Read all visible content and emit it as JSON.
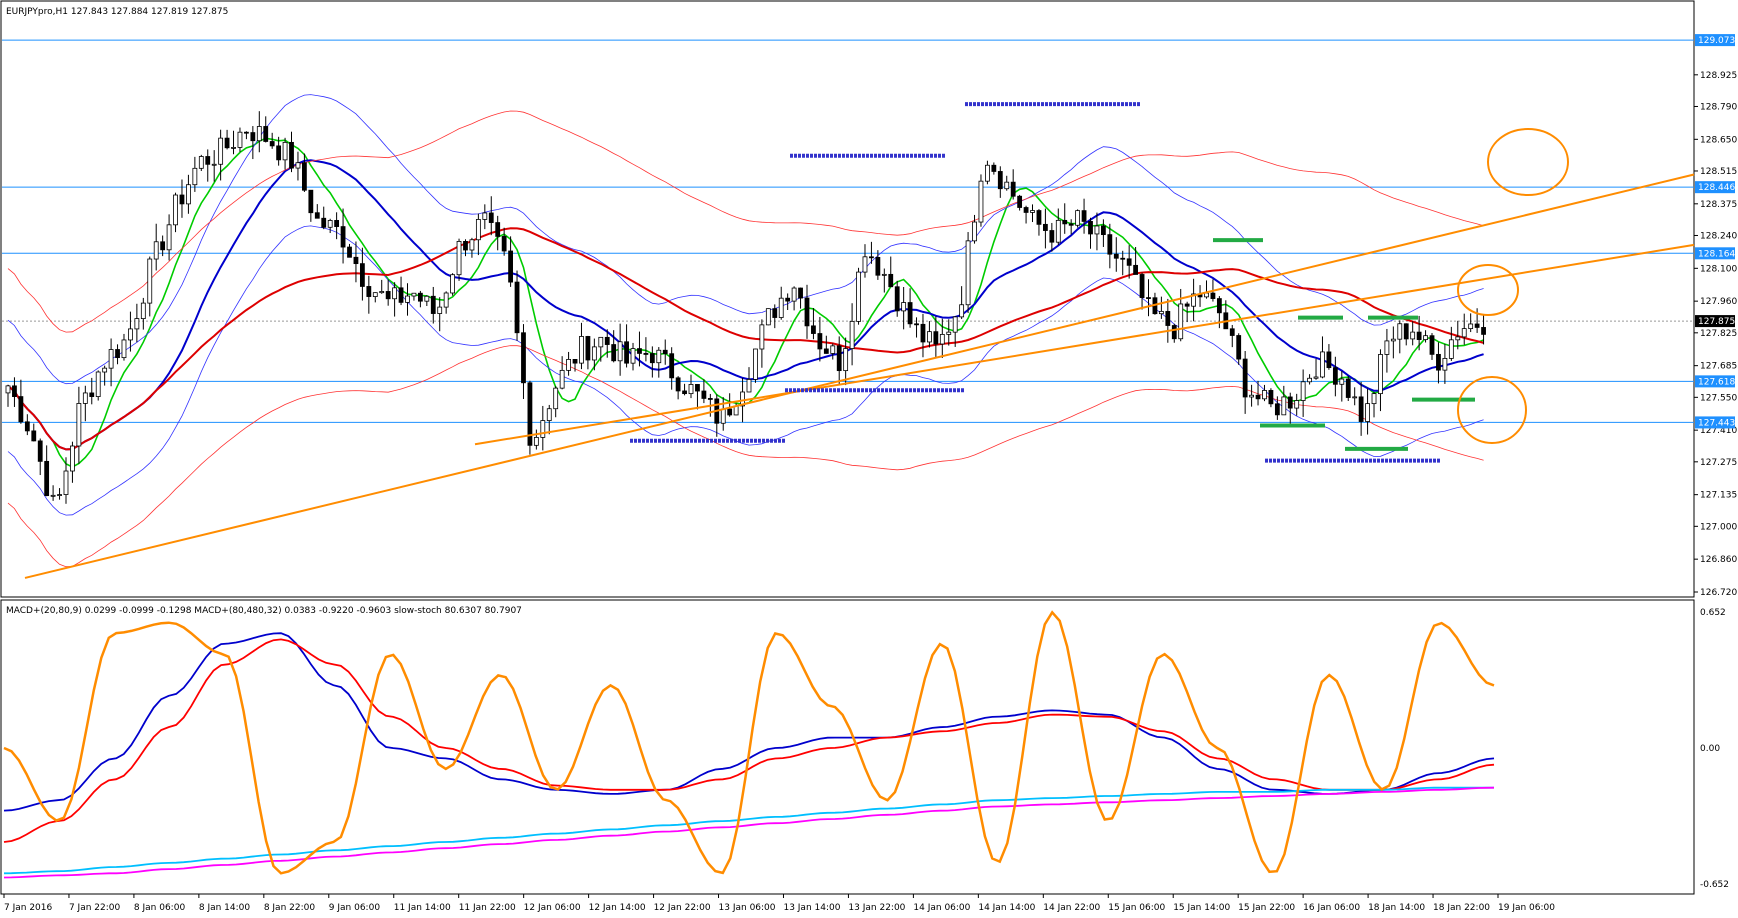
{
  "chart_data": [
    {
      "type": "candlestick",
      "symbol_header": "EURJPYpro,H1  127.843 127.884 127.819 127.875",
      "ylim": [
        126.72,
        129.18
      ],
      "y_ticks": [
        "128.925",
        "128.790",
        "128.650",
        "128.515",
        "128.375",
        "128.240",
        "128.100",
        "127.960",
        "127.825",
        "127.685",
        "127.550",
        "127.410",
        "127.275",
        "127.135",
        "127.000",
        "126.860",
        "126.720"
      ],
      "horizontal_levels": [
        {
          "value": 129.073,
          "label": "129.073",
          "color": "#1e90ff"
        },
        {
          "value": 128.446,
          "label": "128.446",
          "color": "#1e90ff"
        },
        {
          "value": 128.164,
          "label": "128.164",
          "color": "#1e90ff"
        },
        {
          "value": 127.618,
          "label": "127.618",
          "color": "#1e90ff"
        },
        {
          "value": 127.443,
          "label": "127.443",
          "color": "#1e90ff"
        }
      ],
      "current_price": {
        "value": 127.875,
        "label": "127.875"
      },
      "annotations": [
        "orange trendlines",
        "blue support/resistance dashes",
        "green swing dashes",
        "orange circles"
      ],
      "x_ticks": [
        "7 Jan 2016",
        "7 Jan 22:00",
        "8 Jan 06:00",
        "8 Jan 14:00",
        "8 Jan 22:00",
        "9 Jan 06:00",
        "11 Jan 14:00",
        "11 Jan 22:00",
        "12 Jan 06:00",
        "12 Jan 14:00",
        "12 Jan 22:00",
        "13 Jan 06:00",
        "13 Jan 14:00",
        "13 Jan 22:00",
        "14 Jan 06:00",
        "14 Jan 14:00",
        "14 Jan 22:00",
        "15 Jan 06:00",
        "15 Jan 14:00",
        "15 Jan 22:00",
        "16 Jan 06:00",
        "18 Jan 14:00",
        "18 Jan 22:00",
        "19 Jan 06:00"
      ],
      "price_path": [
        127.6,
        127.4,
        127.05,
        127.5,
        127.7,
        127.8,
        128.1,
        128.35,
        128.55,
        128.6,
        128.7,
        128.65,
        128.55,
        128.3,
        128.25,
        128.05,
        127.95,
        128.0,
        127.9,
        128.2,
        128.3,
        128.1,
        127.35,
        127.6,
        127.75,
        127.8,
        127.7,
        127.75,
        127.65,
        127.55,
        127.45,
        127.65,
        127.9,
        128.05,
        127.8,
        127.7,
        128.2,
        128.05,
        127.85,
        127.75,
        127.95,
        128.6,
        128.45,
        128.3,
        128.25,
        128.3,
        128.2,
        128.1,
        127.9,
        127.85,
        128.0,
        127.9,
        127.6,
        127.5,
        127.55,
        127.7,
        127.65,
        127.45,
        127.8,
        127.85,
        127.7,
        127.85,
        127.875
      ],
      "series": [
        {
          "name": "",
          "color": "#00cc00",
          "kind": "ma-fast"
        },
        {
          "name": "",
          "color": "#0000cc",
          "kind": "ma-mid"
        },
        {
          "name": "",
          "color": "#dd0000",
          "kind": "ma-slow"
        }
      ]
    },
    {
      "type": "line",
      "header": "MACD+(20,80,9) 0.0299 -0.0999 -0.1298  MACD+(80,480,32) 0.0383 -0.9220 -0.9603  slow-stoch 80.6307 80.7907",
      "y_ticks": [
        "0.652",
        "0.00",
        "-0.652"
      ],
      "ylim": [
        -0.68,
        0.68
      ],
      "series": [
        {
          "name": "",
          "color": "#0000cc",
          "values": [
            -0.3,
            -0.25,
            -0.05,
            0.25,
            0.5,
            0.55,
            0.3,
            0.0,
            -0.05,
            -0.15,
            -0.2,
            -0.22,
            -0.2,
            -0.1,
            0.0,
            0.05,
            0.05,
            0.1,
            0.15,
            0.18,
            0.16,
            0.05,
            -0.1,
            -0.2,
            -0.22,
            -0.2,
            -0.12,
            -0.05
          ]
        },
        {
          "name": "",
          "color": "#ff0000",
          "values": [
            -0.45,
            -0.35,
            -0.15,
            0.1,
            0.4,
            0.52,
            0.4,
            0.15,
            0.0,
            -0.1,
            -0.18,
            -0.2,
            -0.2,
            -0.15,
            -0.05,
            0.0,
            0.05,
            0.08,
            0.12,
            0.16,
            0.15,
            0.08,
            -0.05,
            -0.15,
            -0.2,
            -0.2,
            -0.15,
            -0.08
          ]
        },
        {
          "name": "",
          "color": "#00bfff",
          "values": [
            -0.6,
            -0.59,
            -0.57,
            -0.55,
            -0.53,
            -0.51,
            -0.49,
            -0.47,
            -0.45,
            -0.43,
            -0.41,
            -0.39,
            -0.37,
            -0.35,
            -0.33,
            -0.31,
            -0.29,
            -0.27,
            -0.25,
            -0.24,
            -0.23,
            -0.22,
            -0.21,
            -0.21,
            -0.2,
            -0.2,
            -0.19,
            -0.19
          ]
        },
        {
          "name": "",
          "color": "#ff00ff",
          "values": [
            -0.62,
            -0.61,
            -0.6,
            -0.58,
            -0.56,
            -0.54,
            -0.52,
            -0.5,
            -0.48,
            -0.46,
            -0.44,
            -0.42,
            -0.4,
            -0.38,
            -0.36,
            -0.34,
            -0.32,
            -0.3,
            -0.28,
            -0.27,
            -0.26,
            -0.25,
            -0.24,
            -0.23,
            -0.22,
            -0.21,
            -0.2,
            -0.19
          ]
        },
        {
          "name": "",
          "color": "#ff8c00",
          "kind": "stoch",
          "values": [
            0.0,
            -0.35,
            0.55,
            0.6,
            0.45,
            -0.6,
            -0.45,
            0.45,
            -0.1,
            0.35,
            -0.2,
            0.3,
            -0.25,
            -0.6,
            0.55,
            0.2,
            -0.25,
            0.5,
            -0.55,
            0.65,
            -0.35,
            0.45,
            0.0,
            -0.6,
            0.35,
            -0.2,
            0.6,
            0.3
          ]
        }
      ]
    }
  ]
}
